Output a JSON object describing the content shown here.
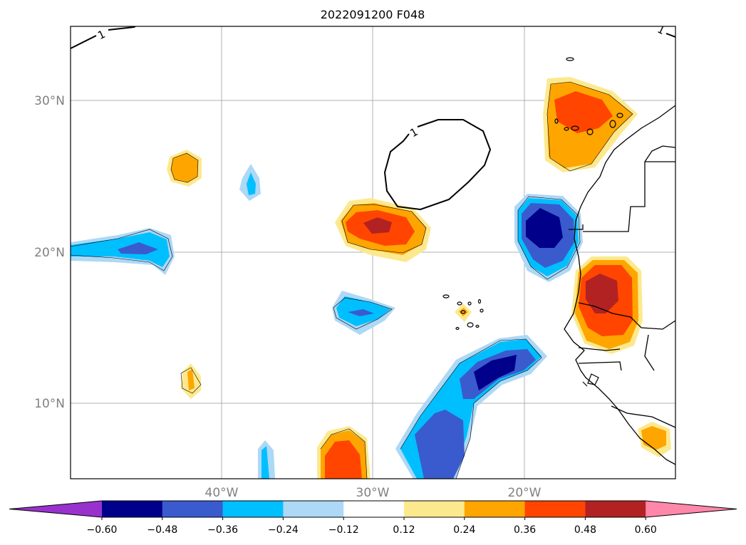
{
  "title": "2022091200 F048",
  "lat_labels": [
    "30°N",
    "20°N",
    "10°N"
  ],
  "lon_labels": [
    "40°W",
    "30°W",
    "20°W"
  ],
  "contour_labels": [
    "1",
    "1",
    "1"
  ],
  "colorbar": {
    "ticks": [
      "−0.60",
      "−0.48",
      "−0.36",
      "−0.24",
      "−0.12",
      "0.12",
      "0.24",
      "0.36",
      "0.48",
      "0.60"
    ],
    "colors": [
      "#9932cc",
      "#00008b",
      "#3a5bcd",
      "#00bfff",
      "#add8f6",
      "#ffffff",
      "#fde98d",
      "#ffa500",
      "#ff4500",
      "#b22222",
      "#ff88aa"
    ]
  },
  "fill_colors": {
    "neg1": "#add8f6",
    "neg2": "#00bfff",
    "neg3": "#3a5bcd",
    "neg4": "#00008b",
    "pos1": "#fde98d",
    "pos2": "#ffa500",
    "pos3": "#ff4500",
    "pos4": "#b22222"
  }
}
